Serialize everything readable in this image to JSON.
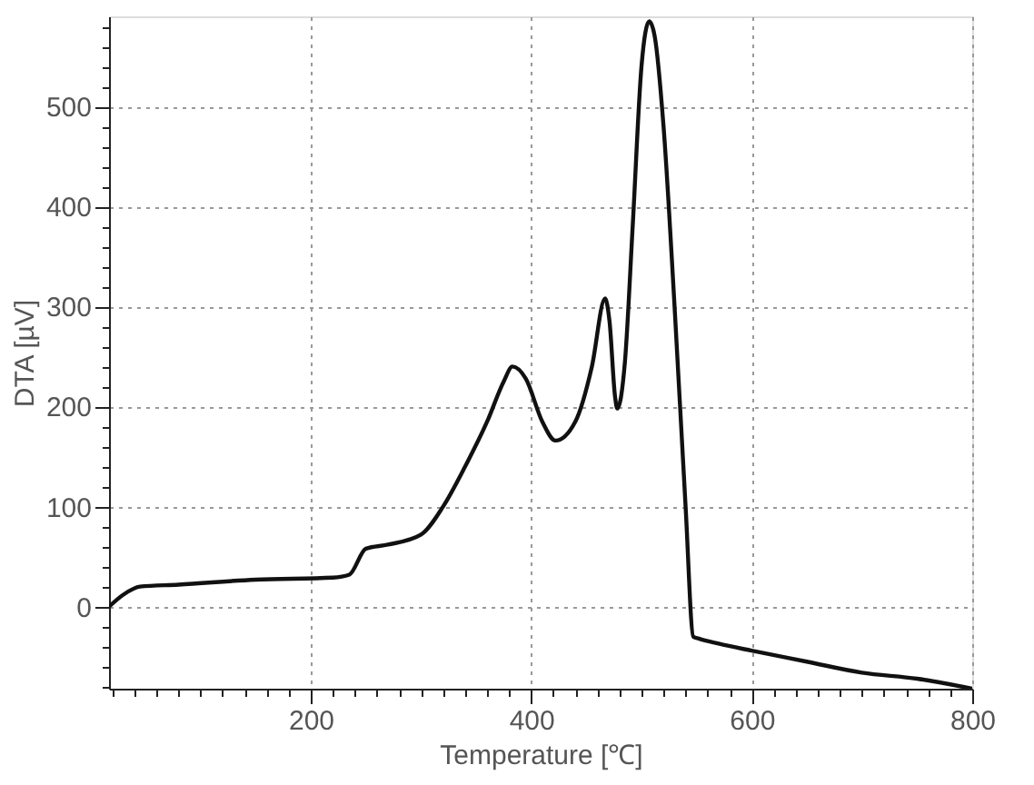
{
  "chart_data": {
    "type": "line",
    "xlabel": "Temperature [℃]",
    "ylabel": "DTA [µV]",
    "xlim": [
      17,
      800
    ],
    "ylim": [
      -82,
      590
    ],
    "xticks": [
      {
        "value": 20,
        "label": null
      },
      {
        "value": 40,
        "label": null
      },
      {
        "value": 60,
        "label": null
      },
      {
        "value": 80,
        "label": null
      },
      {
        "value": 100,
        "label": null
      },
      {
        "value": 120,
        "label": null
      },
      {
        "value": 140,
        "label": null
      },
      {
        "value": 160,
        "label": null
      },
      {
        "value": 180,
        "label": null
      },
      200,
      {
        "value": 220,
        "label": null
      },
      {
        "value": 240,
        "label": null
      },
      {
        "value": 260,
        "label": null
      },
      {
        "value": 280,
        "label": null
      },
      {
        "value": 300,
        "label": null
      },
      {
        "value": 320,
        "label": null
      },
      {
        "value": 340,
        "label": null
      },
      {
        "value": 360,
        "label": null
      },
      {
        "value": 380,
        "label": null
      },
      400,
      {
        "value": 420,
        "label": null
      },
      {
        "value": 440,
        "label": null
      },
      {
        "value": 460,
        "label": null
      },
      {
        "value": 480,
        "label": null
      },
      {
        "value": 500,
        "label": null
      },
      {
        "value": 520,
        "label": null
      },
      {
        "value": 540,
        "label": null
      },
      {
        "value": 560,
        "label": null
      },
      {
        "value": 580,
        "label": null
      },
      600,
      {
        "value": 620,
        "label": null
      },
      {
        "value": 640,
        "label": null
      },
      {
        "value": 660,
        "label": null
      },
      {
        "value": 680,
        "label": null
      },
      {
        "value": 700,
        "label": null
      },
      {
        "value": 720,
        "label": null
      },
      {
        "value": 740,
        "label": null
      },
      {
        "value": 760,
        "label": null
      },
      {
        "value": 780,
        "label": null
      },
      800
    ],
    "yticks": [
      {
        "value": -80,
        "label": null
      },
      {
        "value": -60,
        "label": null
      },
      {
        "value": -40,
        "label": null
      },
      {
        "value": -20,
        "label": null
      },
      0,
      {
        "value": 20,
        "label": null
      },
      {
        "value": 40,
        "label": null
      },
      {
        "value": 60,
        "label": null
      },
      {
        "value": 80,
        "label": null
      },
      100,
      {
        "value": 120,
        "label": null
      },
      {
        "value": 140,
        "label": null
      },
      {
        "value": 160,
        "label": null
      },
      {
        "value": 180,
        "label": null
      },
      200,
      {
        "value": 220,
        "label": null
      },
      {
        "value": 240,
        "label": null
      },
      {
        "value": 260,
        "label": null
      },
      {
        "value": 280,
        "label": null
      },
      300,
      {
        "value": 320,
        "label": null
      },
      {
        "value": 340,
        "label": null
      },
      {
        "value": 360,
        "label": null
      },
      {
        "value": 380,
        "label": null
      },
      400,
      {
        "value": 420,
        "label": null
      },
      {
        "value": 440,
        "label": null
      },
      {
        "value": 460,
        "label": null
      },
      {
        "value": 480,
        "label": null
      },
      500,
      {
        "value": 520,
        "label": null
      },
      {
        "value": 540,
        "label": null
      },
      {
        "value": 560,
        "label": null
      },
      {
        "value": 580,
        "label": null
      }
    ],
    "grid": true,
    "line_style": "solid",
    "marker": "none",
    "series": [
      {
        "color": "#111111",
        "x": [
          17,
          30,
          45,
          80,
          150,
          220,
          235,
          250,
          270,
          300,
          320,
          340,
          360,
          375,
          383,
          395,
          410,
          422,
          440,
          455,
          467,
          471,
          476,
          478,
          485,
          492,
          500,
          507,
          512,
          520,
          530,
          540,
          547,
          552,
          570,
          600,
          650,
          700,
          750,
          800
        ],
        "values": [
          0,
          12,
          20,
          22,
          27,
          29,
          32,
          58,
          62,
          72,
          100,
          140,
          185,
          225,
          240,
          228,
          185,
          166,
          185,
          240,
          308,
          285,
          210,
          198,
          245,
          380,
          540,
          585,
          570,
          480,
          300,
          100,
          -30,
          -32,
          -37,
          -44,
          -55,
          -66,
          -72,
          -82
        ]
      }
    ]
  }
}
